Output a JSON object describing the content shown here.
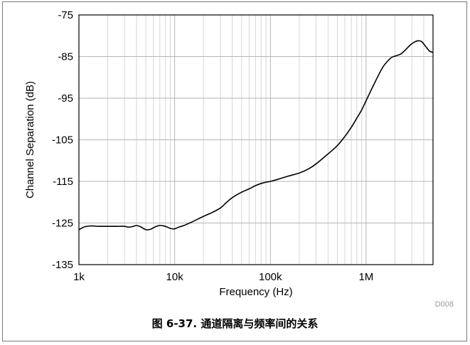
{
  "caption": "图 6-37. 通道隔离与频率间的关系",
  "chart_data": {
    "type": "line",
    "xlabel": "Frequency (Hz)",
    "ylabel": "Channel Separation (dB)",
    "x_scale": "log",
    "xlim": [
      1000,
      5000000
    ],
    "ylim": [
      -135,
      -75
    ],
    "x_ticks": [
      {
        "value": 1000,
        "label": "1k"
      },
      {
        "value": 10000,
        "label": "10k"
      },
      {
        "value": 100000,
        "label": "100k"
      },
      {
        "value": 1000000,
        "label": "1M"
      }
    ],
    "y_ticks": [
      {
        "value": -75,
        "label": "-75"
      },
      {
        "value": -85,
        "label": "-85"
      },
      {
        "value": -95,
        "label": "-95"
      },
      {
        "value": -105,
        "label": "-105"
      },
      {
        "value": -115,
        "label": "-115"
      },
      {
        "value": -125,
        "label": "-125"
      },
      {
        "value": -135,
        "label": "-135"
      }
    ],
    "grid": true,
    "code_label": "D008",
    "series": [
      {
        "color": "#000000",
        "x": [
          1000,
          1150,
          1350,
          1600,
          2000,
          2500,
          3000,
          3300,
          3700,
          4000,
          4400,
          5000,
          5600,
          6300,
          7000,
          8000,
          9000,
          10000,
          11000,
          12500,
          15000,
          20000,
          25000,
          30000,
          35000,
          40000,
          50000,
          60000,
          70000,
          80000,
          90000,
          100000,
          120000,
          150000,
          200000,
          250000,
          300000,
          400000,
          500000,
          600000,
          700000,
          800000,
          900000,
          1000000,
          1200000,
          1500000,
          1800000,
          2000000,
          2300000,
          2600000,
          2900000,
          3200000,
          3500000,
          3800000,
          4200000,
          4600000,
          5000000
        ],
        "y": [
          -126.6,
          -125.9,
          -125.7,
          -125.8,
          -125.8,
          -125.8,
          -125.8,
          -126.0,
          -125.8,
          -125.6,
          -125.9,
          -126.6,
          -126.5,
          -125.9,
          -125.6,
          -125.8,
          -126.3,
          -126.4,
          -126.0,
          -125.6,
          -124.8,
          -123.4,
          -122.4,
          -121.4,
          -120.0,
          -118.9,
          -117.6,
          -116.8,
          -116.0,
          -115.5,
          -115.2,
          -115.0,
          -114.5,
          -113.8,
          -113.0,
          -112.0,
          -110.8,
          -108.4,
          -106.4,
          -104.2,
          -102.0,
          -99.8,
          -97.8,
          -95.6,
          -91.8,
          -87.5,
          -85.4,
          -84.9,
          -84.4,
          -83.3,
          -82.2,
          -81.5,
          -81.2,
          -81.4,
          -82.6,
          -83.7,
          -84.0
        ]
      }
    ]
  }
}
